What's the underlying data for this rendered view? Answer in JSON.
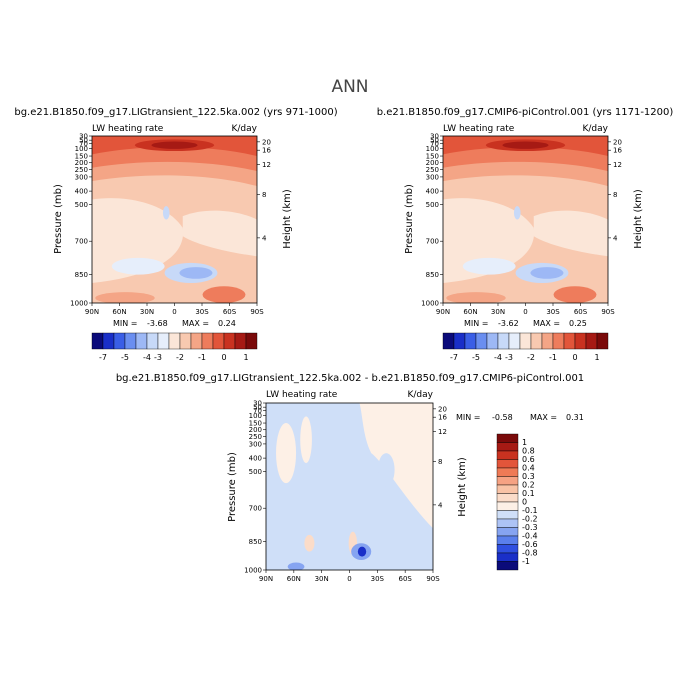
{
  "page_title": "ANN",
  "colors": {
    "top": [
      "#0b0b7a",
      "#1a2fc8",
      "#3a5ee6",
      "#6a8ef0",
      "#9db8f5",
      "#c7d9f8",
      "#e6eefb",
      "#fbe6d8",
      "#f8c9b0",
      "#f4a586",
      "#ee7c5c",
      "#e2553a",
      "#c93220",
      "#a61a14",
      "#7a0a0a"
    ],
    "diff": [
      "#0b0b7a",
      "#1a2fc8",
      "#2f4fe0",
      "#5a7fec",
      "#86a4f1",
      "#adc3f5",
      "#cfdff8",
      "#fdf0e6",
      "#fbdcc9",
      "#f9c3a6",
      "#f6a283",
      "#ef7a56",
      "#e2553a",
      "#c93220",
      "#a61a14",
      "#7a0a0a"
    ]
  },
  "chart_data": [
    {
      "type": "heatmap",
      "title": "bg.e21.B1850.f09_g17.LIGtransient_122.5ka.002 (yrs 971-1000)",
      "field": "LW heating rate",
      "units": "K/day",
      "ylabel": "Pressure (mb)",
      "ylabel_right": "Height (km)",
      "xticks": [
        "90N",
        "60N",
        "30N",
        "0",
        "30S",
        "60S",
        "90S"
      ],
      "yticks": [
        "30",
        "50",
        "70",
        "100",
        "150",
        "200",
        "250",
        "300",
        "400",
        "500",
        "700",
        "850",
        "1000"
      ],
      "right_ticks": [
        "20",
        "16",
        "12",
        "8",
        "4"
      ],
      "min_label": "MIN =",
      "min_value": "-3.68",
      "max_label": "MAX =",
      "max_value": "0.24",
      "colorbar_labels": [
        "-7",
        "-5",
        "-4",
        "-3",
        "-2",
        "-1",
        "0",
        "1"
      ]
    },
    {
      "type": "heatmap",
      "title": "b.e21.B1850.f09_g17.CMIP6-piControl.001 (yrs 1171-1200)",
      "field": "LW heating rate",
      "units": "K/day",
      "ylabel": "Pressure (mb)",
      "ylabel_right": "Height (km)",
      "xticks": [
        "90N",
        "60N",
        "30N",
        "0",
        "30S",
        "60S",
        "90S"
      ],
      "yticks": [
        "30",
        "50",
        "70",
        "100",
        "150",
        "200",
        "250",
        "300",
        "400",
        "500",
        "700",
        "850",
        "1000"
      ],
      "right_ticks": [
        "20",
        "16",
        "12",
        "8",
        "4"
      ],
      "min_label": "MIN =",
      "min_value": "-3.62",
      "max_label": "MAX =",
      "max_value": "0.25",
      "colorbar_labels": [
        "-7",
        "-5",
        "-4",
        "-3",
        "-2",
        "-1",
        "0",
        "1"
      ]
    },
    {
      "type": "heatmap",
      "title": "bg.e21.B1850.f09_g17.LIGtransient_122.5ka.002 - b.e21.B1850.f09_g17.CMIP6-piControl.001",
      "field": "LW heating rate",
      "units": "K/day",
      "ylabel": "Pressure (mb)",
      "ylabel_right": "Height (km)",
      "xticks": [
        "90N",
        "60N",
        "30N",
        "0",
        "30S",
        "60S",
        "90S"
      ],
      "yticks": [
        "30",
        "50",
        "70",
        "100",
        "150",
        "200",
        "250",
        "300",
        "400",
        "500",
        "700",
        "850",
        "1000"
      ],
      "right_ticks": [
        "20",
        "16",
        "12",
        "8",
        "4"
      ],
      "min_label": "MIN =",
      "min_value": "-0.58",
      "max_label": "MAX =",
      "max_value": "0.31",
      "colorbar_labels": [
        "1",
        "0.8",
        "0.6",
        "0.4",
        "0.3",
        "0.2",
        "0.1",
        "0",
        "-0.1",
        "-0.2",
        "-0.3",
        "-0.4",
        "-0.6",
        "-0.8",
        "-1"
      ]
    }
  ]
}
